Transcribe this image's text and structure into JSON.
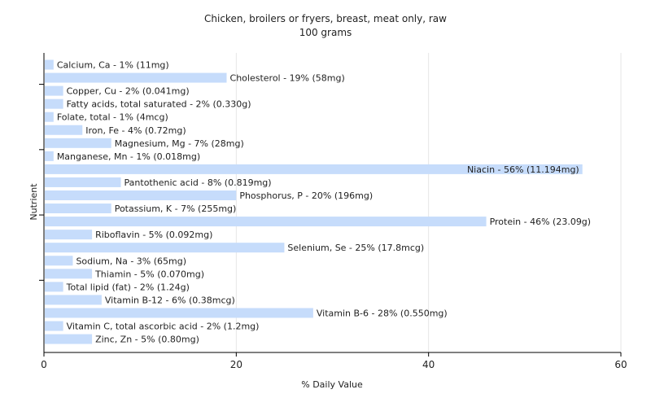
{
  "chart_data": {
    "type": "bar",
    "orientation": "horizontal",
    "title": "Chicken, broilers or fryers, breast, meat only, raw",
    "subtitle": "100 grams",
    "xlabel": "% Daily Value",
    "ylabel": "Nutrient",
    "xlim": [
      0,
      60
    ],
    "xticks": [
      0,
      20,
      40,
      60
    ],
    "grid": true,
    "bar_color": "#c6dcfb",
    "categories": [
      "Calcium, Ca",
      "Cholesterol",
      "Copper, Cu",
      "Fatty acids, total saturated",
      "Folate, total",
      "Iron, Fe",
      "Magnesium, Mg",
      "Manganese, Mn",
      "Niacin",
      "Pantothenic acid",
      "Phosphorus, P",
      "Potassium, K",
      "Protein",
      "Riboflavin",
      "Selenium, Se",
      "Sodium, Na",
      "Thiamin",
      "Total lipid (fat)",
      "Vitamin B-12",
      "Vitamin B-6",
      "Vitamin C, total ascorbic acid",
      "Zinc, Zn"
    ],
    "values": [
      1,
      19,
      2,
      2,
      1,
      4,
      7,
      1,
      56,
      8,
      20,
      7,
      46,
      5,
      25,
      3,
      5,
      2,
      6,
      28,
      2,
      5
    ],
    "labels": [
      "Calcium, Ca - 1% (11mg)",
      "Cholesterol - 19% (58mg)",
      "Copper, Cu - 2% (0.041mg)",
      "Fatty acids, total saturated - 2% (0.330g)",
      "Folate, total - 1% (4mcg)",
      "Iron, Fe - 4% (0.72mg)",
      "Magnesium, Mg - 7% (28mg)",
      "Manganese, Mn - 1% (0.018mg)",
      "Niacin - 56% (11.194mg)",
      "Pantothenic acid - 8% (0.819mg)",
      "Phosphorus, P - 20% (196mg)",
      "Potassium, K - 7% (255mg)",
      "Protein - 46% (23.09g)",
      "Riboflavin - 5% (0.092mg)",
      "Selenium, Se - 25% (17.8mcg)",
      "Sodium, Na - 3% (65mg)",
      "Thiamin - 5% (0.070mg)",
      "Total lipid (fat) - 2% (1.24g)",
      "Vitamin B-12 - 6% (0.38mcg)",
      "Vitamin B-6 - 28% (0.550mg)",
      "Vitamin C, total ascorbic acid - 2% (1.2mg)",
      "Zinc, Zn - 5% (0.80mg)"
    ]
  }
}
